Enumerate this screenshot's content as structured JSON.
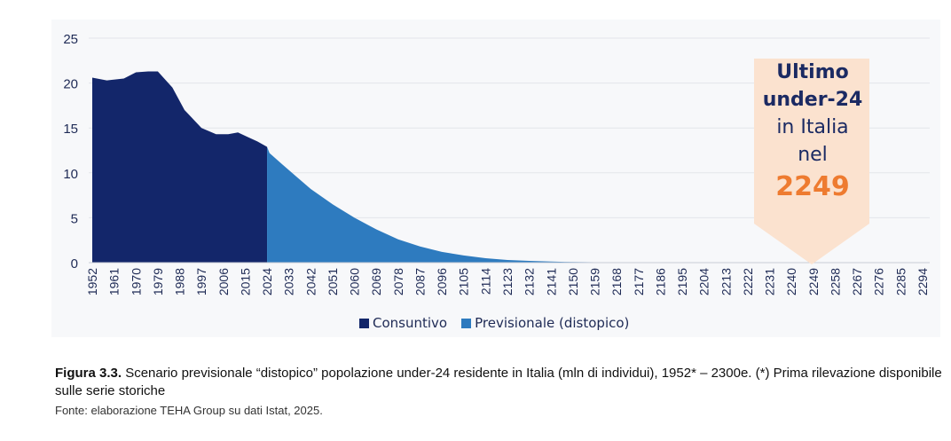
{
  "chart_data": {
    "type": "area",
    "ylim": [
      0,
      25
    ],
    "yticks": [
      "0",
      "5",
      "10",
      "15",
      "20",
      "25"
    ],
    "xticks": [
      "1952",
      "1961",
      "1970",
      "1979",
      "1988",
      "1997",
      "2006",
      "2015",
      "2024",
      "2033",
      "2042",
      "2051",
      "2060",
      "2069",
      "2078",
      "2087",
      "2096",
      "2105",
      "2114",
      "2123",
      "2132",
      "2141",
      "2150",
      "2159",
      "2168",
      "2177",
      "2186",
      "2195",
      "2204",
      "2213",
      "2222",
      "2231",
      "2240",
      "2249",
      "2258",
      "2267",
      "2276",
      "2285",
      "2294"
    ],
    "xlim": [
      1952,
      2294
    ],
    "series": [
      {
        "name": "Consuntivo",
        "color": "#13266a",
        "x": [
          1952,
          1958,
          1965,
          1970,
          1975,
          1979,
          1985,
          1990,
          1997,
          2003,
          2008,
          2012,
          2016,
          2020,
          2024
        ],
        "values": [
          20.6,
          20.3,
          20.5,
          21.2,
          21.3,
          21.3,
          19.5,
          17.0,
          15.0,
          14.3,
          14.3,
          14.5,
          14.0,
          13.5,
          12.9
        ]
      },
      {
        "name": "Previsionale (distopico)",
        "color": "#2e7bbf",
        "x": [
          2024,
          2025,
          2030,
          2036,
          2042,
          2051,
          2060,
          2069,
          2078,
          2087,
          2096,
          2105,
          2114,
          2123,
          2132,
          2141,
          2150,
          2168,
          2186,
          2249
        ],
        "values": [
          12.9,
          12.2,
          11.0,
          9.6,
          8.2,
          6.5,
          5.0,
          3.7,
          2.6,
          1.8,
          1.2,
          0.8,
          0.5,
          0.3,
          0.2,
          0.12,
          0.07,
          0.03,
          0.01,
          0
        ]
      }
    ],
    "legend": "bottom",
    "grid": true,
    "annotation": {
      "line1": "Ultimo",
      "line2": "under-24",
      "line3": "in Italia",
      "line4": "nel",
      "year": "2249"
    }
  },
  "caption": {
    "label": "Figura 3.3.",
    "text": " Scenario previsionale “distopico” popolazione under-24 residente in Italia (mln di individui), 1952* – 2300e. (*) Prima rilevazione disponibile sulle serie storiche",
    "source": "Fonte: elaborazione TEHA Group su dati Istat, 2025."
  }
}
